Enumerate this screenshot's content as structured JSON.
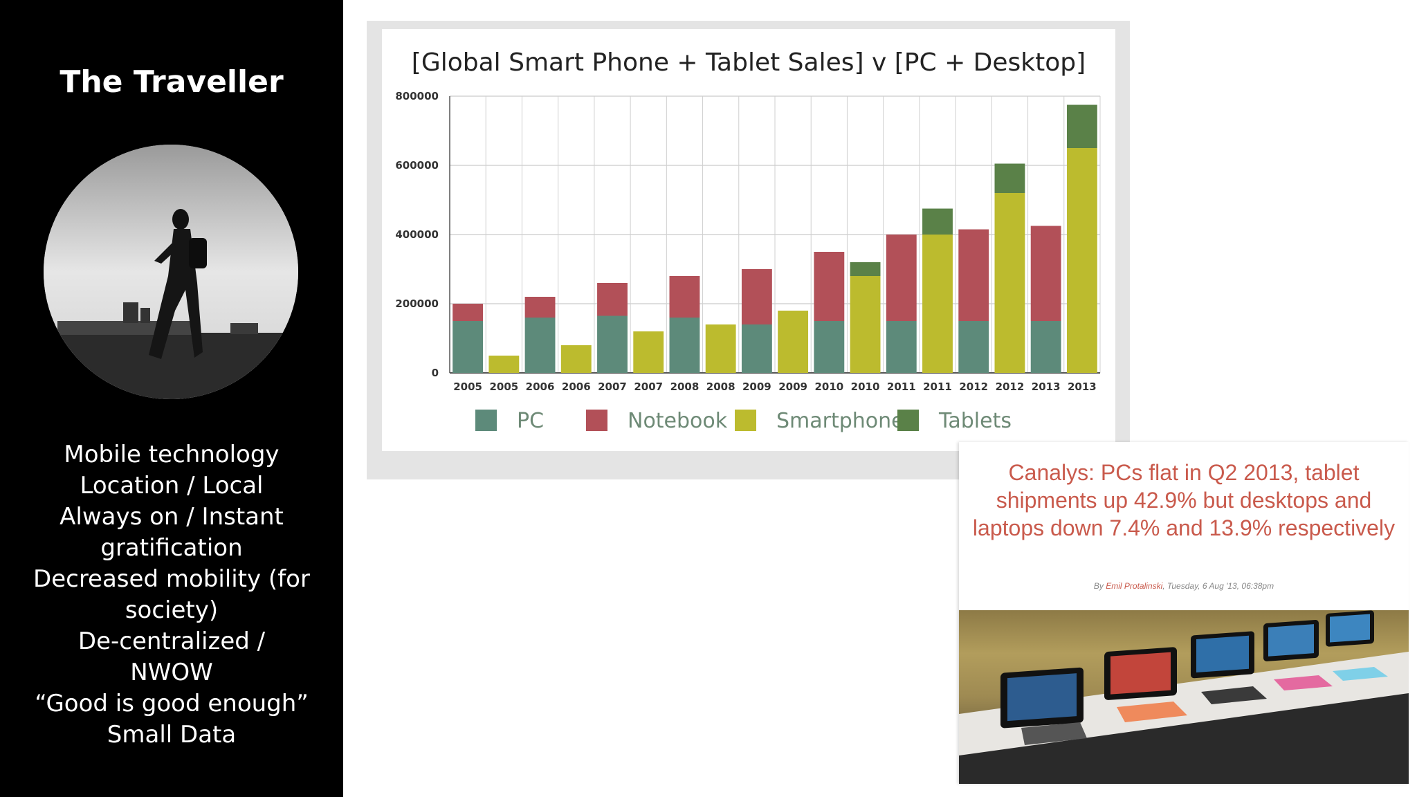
{
  "sidebar": {
    "title": "The Traveller",
    "bullets": [
      "Mobile technology",
      "Location / Local",
      "Always on / Instant",
      "gratification",
      "Decreased mobility (for",
      "society)",
      "De-centralized /",
      "NWOW",
      "“Good is good enough”",
      "Small Data"
    ]
  },
  "chart_data": {
    "type": "bar",
    "stacked": true,
    "title": "[Global Smart Phone + Tablet Sales] v [PC + Desktop]",
    "xlabel": "",
    "ylabel": "",
    "ylim": [
      0,
      800000
    ],
    "yticks": [
      "0",
      "200000",
      "400000",
      "600000",
      "800000"
    ],
    "categories": [
      "2005",
      "2005",
      "2006",
      "2006",
      "2007",
      "2007",
      "2008",
      "2008",
      "2009",
      "2009",
      "2010",
      "2010",
      "2011",
      "2011",
      "2012",
      "2012",
      "2013",
      "2013"
    ],
    "grid": true,
    "legend_position": "bottom",
    "series": [
      {
        "name": "PC",
        "color": "#5d8a7a",
        "values": [
          150000,
          0,
          160000,
          0,
          165000,
          0,
          160000,
          0,
          140000,
          0,
          150000,
          0,
          150000,
          0,
          150000,
          0,
          150000,
          0
        ]
      },
      {
        "name": "Notebook",
        "color": "#b25058",
        "values": [
          50000,
          0,
          60000,
          0,
          95000,
          0,
          120000,
          0,
          160000,
          0,
          200000,
          0,
          250000,
          0,
          265000,
          0,
          275000,
          0
        ]
      },
      {
        "name": "Smartphone",
        "color": "#bcbb2e",
        "values": [
          0,
          50000,
          0,
          80000,
          0,
          120000,
          0,
          140000,
          0,
          180000,
          0,
          280000,
          0,
          400000,
          0,
          520000,
          0,
          650000
        ]
      },
      {
        "name": "Tablets",
        "color": "#5a8148",
        "values": [
          0,
          0,
          0,
          0,
          0,
          0,
          0,
          0,
          0,
          0,
          0,
          40000,
          0,
          75000,
          0,
          85000,
          0,
          125000
        ]
      }
    ]
  },
  "news": {
    "headline": "Canalys: PCs flat in Q2 2013, tablet shipments up 42.9% but desktops and laptops down 7.4% and 13.9% respectively",
    "byline_prefix": "By",
    "author": "Emil Protalinski",
    "date": ", Tuesday, 6 Aug '13, 06:38pm"
  }
}
